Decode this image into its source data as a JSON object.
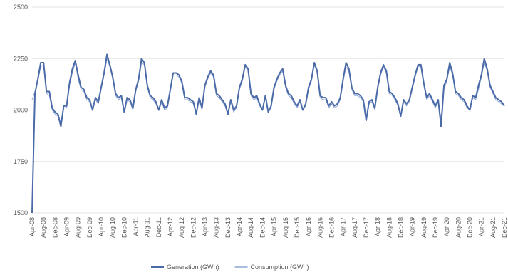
{
  "chart_data": {
    "type": "line",
    "categories": [
      "Apr-08",
      null,
      null,
      null,
      "Aug-08",
      null,
      null,
      null,
      "Dec-08",
      null,
      null,
      null,
      "Apr-09",
      null,
      null,
      null,
      "Aug-09",
      null,
      null,
      null,
      "Dec-09",
      null,
      null,
      null,
      "Apr-10",
      null,
      null,
      null,
      "Aug-10",
      null,
      null,
      null,
      "Dec-10",
      null,
      null,
      null,
      "Apr-11",
      null,
      null,
      null,
      "Aug-11",
      null,
      null,
      null,
      "Dec-11",
      null,
      null,
      null,
      "Apr-12",
      null,
      null,
      null,
      "Aug-12",
      null,
      null,
      null,
      "Dec-12",
      null,
      null,
      null,
      "Apr-13",
      null,
      null,
      null,
      "Aug-13",
      null,
      null,
      null,
      "Dec-13",
      null,
      null,
      null,
      "Apr-14",
      null,
      null,
      null,
      "Aug-14",
      null,
      null,
      null,
      "Dec-14",
      null,
      null,
      null,
      "Apr-15",
      null,
      null,
      null,
      "Aug-15",
      null,
      null,
      null,
      "Dec-15",
      null,
      null,
      null,
      "Apr-16",
      null,
      null,
      null,
      "Aug-16",
      null,
      null,
      null,
      "Dec-16",
      null,
      null,
      null,
      "Apr-17",
      null,
      null,
      null,
      "Aug-17",
      null,
      null,
      null,
      "Dec-17",
      null,
      null,
      null,
      "Apr-18",
      null,
      null,
      null,
      "Aug-18",
      null,
      null,
      null,
      "Dec-18",
      null,
      null,
      null,
      "Apr-19",
      null,
      null,
      null,
      "Aug-19",
      null,
      null,
      null,
      "Dec-19",
      null,
      null,
      null,
      "Apr-20",
      null,
      null,
      null,
      "Aug-20",
      null,
      null,
      null,
      "Dec-20",
      null,
      null,
      null,
      "Apr-21",
      null,
      null,
      null,
      "Aug-21",
      null,
      null,
      null,
      "Dec-21"
    ],
    "series": [
      {
        "name": "Generation (GWh)",
        "color": "#4a6aa8",
        "width": 2,
        "values": [
          1500,
          2080,
          2150,
          2230,
          2230,
          2090,
          2090,
          2010,
          1990,
          1980,
          1920,
          2020,
          2020,
          2130,
          2200,
          2240,
          2170,
          2110,
          2100,
          2060,
          2050,
          2000,
          2060,
          2040,
          2110,
          2180,
          2270,
          2220,
          2160,
          2080,
          2060,
          2070,
          1990,
          2060,
          2050,
          2010,
          2100,
          2150,
          2250,
          2230,
          2120,
          2070,
          2060,
          2040,
          2000,
          2050,
          2010,
          2020,
          2100,
          2180,
          2180,
          2170,
          2140,
          2060,
          2060,
          2050,
          2040,
          1980,
          2060,
          2010,
          2120,
          2160,
          2190,
          2170,
          2080,
          2070,
          2050,
          2030,
          1980,
          2050,
          2000,
          2020,
          2110,
          2150,
          2220,
          2200,
          2080,
          2060,
          2070,
          2030,
          2000,
          2070,
          1990,
          2020,
          2110,
          2150,
          2180,
          2200,
          2120,
          2080,
          2070,
          2040,
          2020,
          2050,
          2000,
          2030,
          2110,
          2150,
          2230,
          2190,
          2070,
          2060,
          2060,
          2020,
          2040,
          2020,
          2030,
          2060,
          2150,
          2230,
          2200,
          2110,
          2080,
          2080,
          2070,
          2050,
          1950,
          2040,
          2050,
          2010,
          2110,
          2180,
          2220,
          2190,
          2090,
          2080,
          2060,
          2030,
          1970,
          2050,
          2030,
          2050,
          2110,
          2170,
          2220,
          2220,
          2130,
          2060,
          2080,
          2050,
          2020,
          2050,
          1920,
          2120,
          2150,
          2230,
          2180,
          2090,
          2080,
          2060,
          2050,
          2020,
          2000,
          2070,
          2060,
          2120,
          2170,
          2250,
          2200,
          2120,
          2090,
          2060,
          2050,
          2040,
          2020
        ]
      },
      {
        "name": "Consumption (GWh)",
        "color": "#8ea6d4",
        "width": 1,
        "values": [
          2050,
          2090,
          2140,
          2210,
          2220,
          2080,
          2070,
          2000,
          1980,
          1970,
          1940,
          2010,
          2010,
          2120,
          2180,
          2230,
          2150,
          2100,
          2090,
          2050,
          2040,
          2000,
          2050,
          2030,
          2100,
          2170,
          2250,
          2210,
          2150,
          2070,
          2050,
          2060,
          1990,
          2050,
          2040,
          2000,
          2090,
          2140,
          2230,
          2220,
          2110,
          2060,
          2050,
          2030,
          2000,
          2040,
          2000,
          2010,
          2090,
          2170,
          2170,
          2160,
          2130,
          2050,
          2050,
          2040,
          2030,
          1980,
          2050,
          2000,
          2110,
          2150,
          2180,
          2160,
          2070,
          2060,
          2040,
          2020,
          1980,
          2040,
          1990,
          2010,
          2100,
          2140,
          2210,
          2190,
          2070,
          2050,
          2060,
          2020,
          2000,
          2060,
          1990,
          2010,
          2100,
          2140,
          2170,
          2190,
          2110,
          2070,
          2060,
          2030,
          2010,
          2040,
          2000,
          2020,
          2100,
          2140,
          2220,
          2180,
          2060,
          2050,
          2050,
          2010,
          2030,
          2010,
          2020,
          2050,
          2140,
          2210,
          2190,
          2100,
          2070,
          2070,
          2060,
          2040,
          1960,
          2030,
          2040,
          2000,
          2100,
          2170,
          2210,
          2180,
          2080,
          2070,
          2050,
          2020,
          1970,
          2040,
          2020,
          2040,
          2100,
          2160,
          2210,
          2210,
          2120,
          2050,
          2070,
          2040,
          2010,
          2040,
          1960,
          2100,
          2140,
          2210,
          2170,
          2080,
          2070,
          2050,
          2040,
          2010,
          2000,
          2060,
          2050,
          2100,
          2160,
          2230,
          2190,
          2110,
          2080,
          2050,
          2040,
          2030,
          2020
        ]
      }
    ],
    "ylim": [
      1500,
      2500
    ],
    "yticks": [
      1500,
      1750,
      2000,
      2250,
      2500
    ],
    "grid": true,
    "legend": "bottom"
  }
}
